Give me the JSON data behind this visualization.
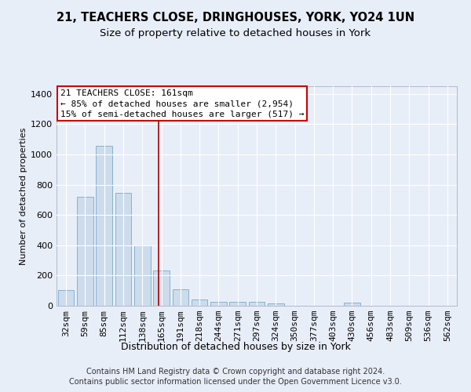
{
  "title1": "21, TEACHERS CLOSE, DRINGHOUSES, YORK, YO24 1UN",
  "title2": "Size of property relative to detached houses in York",
  "xlabel": "Distribution of detached houses by size in York",
  "ylabel": "Number of detached properties",
  "categories": [
    "32sqm",
    "59sqm",
    "85sqm",
    "112sqm",
    "138sqm",
    "165sqm",
    "191sqm",
    "218sqm",
    "244sqm",
    "271sqm",
    "297sqm",
    "324sqm",
    "350sqm",
    "377sqm",
    "403sqm",
    "430sqm",
    "456sqm",
    "483sqm",
    "509sqm",
    "536sqm",
    "562sqm"
  ],
  "values": [
    105,
    720,
    1055,
    748,
    400,
    235,
    110,
    40,
    25,
    28,
    25,
    18,
    0,
    0,
    0,
    20,
    0,
    0,
    0,
    0,
    0
  ],
  "bar_color": "#ccdcec",
  "bar_edge_color": "#7aaac8",
  "vline_color": "#aa0000",
  "vline_x_idx": 4.85,
  "annotation_title": "21 TEACHERS CLOSE: 161sqm",
  "annotation_line1": "← 85% of detached houses are smaller (2,954)",
  "annotation_line2": "15% of semi-detached houses are larger (517) →",
  "annotation_box_color": "#ffffff",
  "annotation_box_edge": "#cc0000",
  "footer1": "Contains HM Land Registry data © Crown copyright and database right 2024.",
  "footer2": "Contains public sector information licensed under the Open Government Licence v3.0.",
  "bg_color": "#e8eef8",
  "plot_bg_color": "#e8eef8",
  "ylim": [
    0,
    1450
  ],
  "yticks": [
    0,
    200,
    400,
    600,
    800,
    1000,
    1200,
    1400
  ],
  "title1_fontsize": 10.5,
  "title2_fontsize": 9.5,
  "xlabel_fontsize": 9,
  "ylabel_fontsize": 8,
  "tick_fontsize": 8,
  "ann_fontsize": 8,
  "footer_fontsize": 7
}
